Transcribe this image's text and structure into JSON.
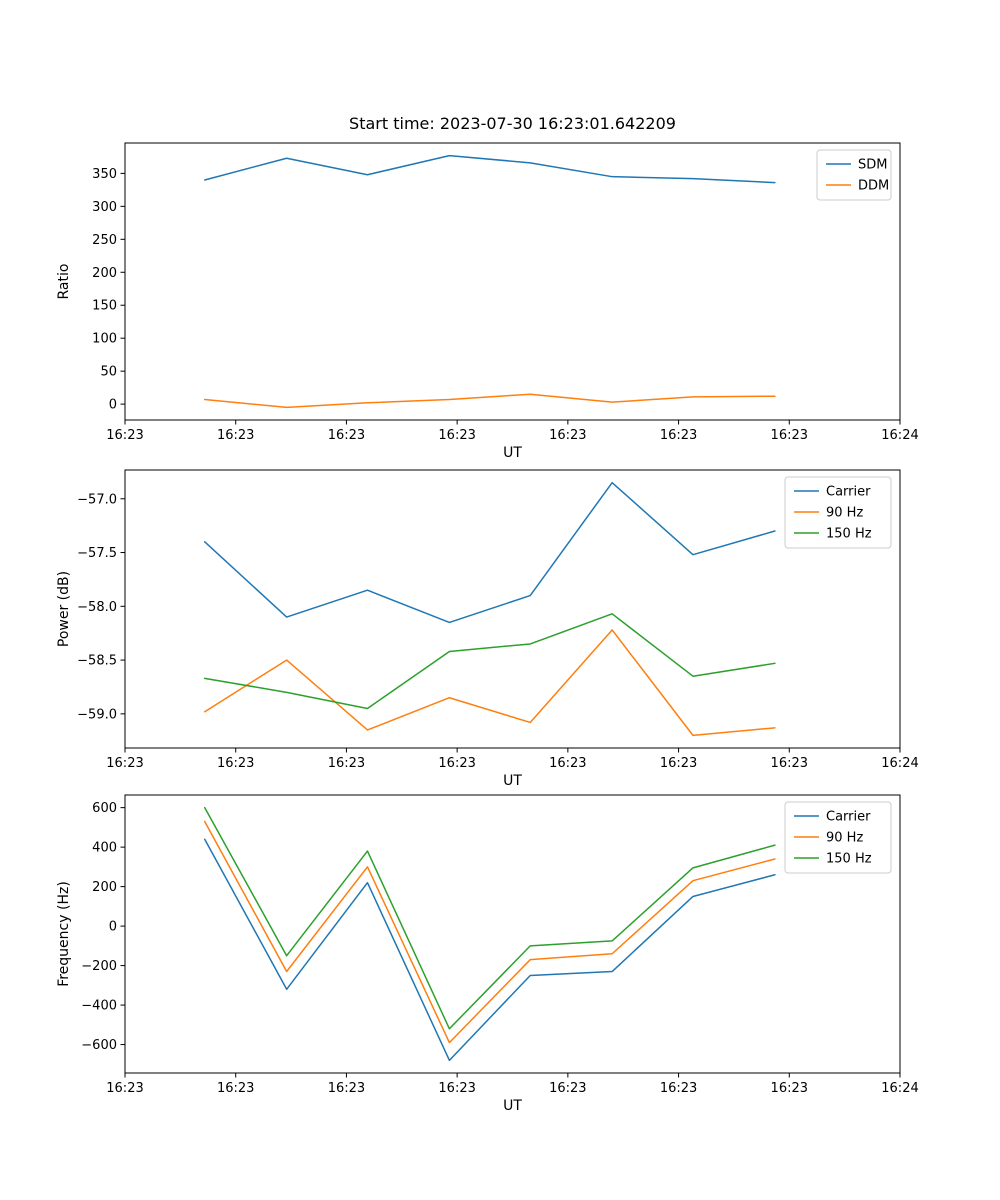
{
  "figure_title": "Start time: 2023-07-30 16:23:01.642209",
  "colors": {
    "blue": "#1f77b4",
    "orange": "#ff7f0e",
    "green": "#2ca02c",
    "legend_border": "#cccccc",
    "axis": "#000000"
  },
  "chart_data": [
    {
      "type": "line",
      "title": "Start time: 2023-07-30 16:23:01.642209",
      "xlabel": "UT",
      "ylabel": "Ratio",
      "grid": false,
      "legend_position": "upper right",
      "xlim": [
        0,
        7
      ],
      "ylim": [
        -24.1,
        396.1
      ],
      "x_ticks": [
        0,
        1,
        2,
        3,
        4,
        5,
        6,
        7
      ],
      "x_tick_labels": [
        "16:23",
        "16:23",
        "16:23",
        "16:23",
        "16:23",
        "16:23",
        "16:23",
        "16:24"
      ],
      "y_ticks": [
        0,
        50,
        100,
        150,
        200,
        250,
        300,
        350
      ],
      "y_tick_labels": [
        "0",
        "50",
        "100",
        "150",
        "200",
        "250",
        "300",
        "350"
      ],
      "x": [
        0.72,
        1.46,
        2.19,
        2.93,
        3.66,
        4.4,
        5.13,
        5.87
      ],
      "series": [
        {
          "name": "SDM",
          "color": "#1f77b4",
          "values": [
            340,
            373,
            348,
            377,
            366,
            345,
            342,
            336
          ]
        },
        {
          "name": "DDM",
          "color": "#ff7f0e",
          "values": [
            7,
            -5,
            2,
            7,
            15,
            3,
            11,
            12
          ]
        }
      ]
    },
    {
      "type": "line",
      "title": "",
      "xlabel": "UT",
      "ylabel": "Power (dB)",
      "grid": false,
      "legend_position": "upper right",
      "xlim": [
        0,
        7
      ],
      "ylim": [
        -59.3175,
        -56.7325
      ],
      "x_ticks": [
        0,
        1,
        2,
        3,
        4,
        5,
        6,
        7
      ],
      "x_tick_labels": [
        "16:23",
        "16:23",
        "16:23",
        "16:23",
        "16:23",
        "16:23",
        "16:23",
        "16:24"
      ],
      "y_ticks": [
        -59.0,
        -58.5,
        -58.0,
        -57.5,
        -57.0
      ],
      "y_tick_labels": [
        "−59.0",
        "−58.5",
        "−58.0",
        "−57.5",
        "−57.0"
      ],
      "x": [
        0.72,
        1.46,
        2.19,
        2.93,
        3.66,
        4.4,
        5.13,
        5.87
      ],
      "series": [
        {
          "name": "Carrier",
          "color": "#1f77b4",
          "values": [
            -57.4,
            -58.1,
            -57.85,
            -58.15,
            -57.9,
            -56.85,
            -57.52,
            -57.3
          ]
        },
        {
          "name": "90 Hz",
          "color": "#ff7f0e",
          "values": [
            -58.98,
            -58.5,
            -59.15,
            -58.85,
            -59.08,
            -58.22,
            -59.2,
            -59.13
          ]
        },
        {
          "name": "150 Hz",
          "color": "#2ca02c",
          "values": [
            -58.67,
            -58.8,
            -58.95,
            -58.42,
            -58.35,
            -58.07,
            -58.65,
            -58.53
          ]
        }
      ]
    },
    {
      "type": "line",
      "title": "",
      "xlabel": "UT",
      "ylabel": "Frequency (Hz)",
      "grid": false,
      "legend_position": "upper right",
      "xlim": [
        0,
        7
      ],
      "ylim": [
        -744,
        664
      ],
      "x_ticks": [
        0,
        1,
        2,
        3,
        4,
        5,
        6,
        7
      ],
      "x_tick_labels": [
        "16:23",
        "16:23",
        "16:23",
        "16:23",
        "16:23",
        "16:23",
        "16:23",
        "16:24"
      ],
      "y_ticks": [
        -600,
        -400,
        -200,
        0,
        200,
        400,
        600
      ],
      "y_tick_labels": [
        "−600",
        "−400",
        "−200",
        "0",
        "200",
        "400",
        "600"
      ],
      "x": [
        0.72,
        1.46,
        2.19,
        2.93,
        3.66,
        4.4,
        5.13,
        5.87
      ],
      "series": [
        {
          "name": "Carrier",
          "color": "#1f77b4",
          "values": [
            440,
            -320,
            220,
            -680,
            -250,
            -230,
            150,
            260
          ]
        },
        {
          "name": "90 Hz",
          "color": "#ff7f0e",
          "values": [
            530,
            -230,
            300,
            -590,
            -170,
            -140,
            230,
            340
          ]
        },
        {
          "name": "150 Hz",
          "color": "#2ca02c",
          "values": [
            600,
            -150,
            380,
            -520,
            -100,
            -75,
            295,
            410
          ]
        }
      ]
    }
  ]
}
